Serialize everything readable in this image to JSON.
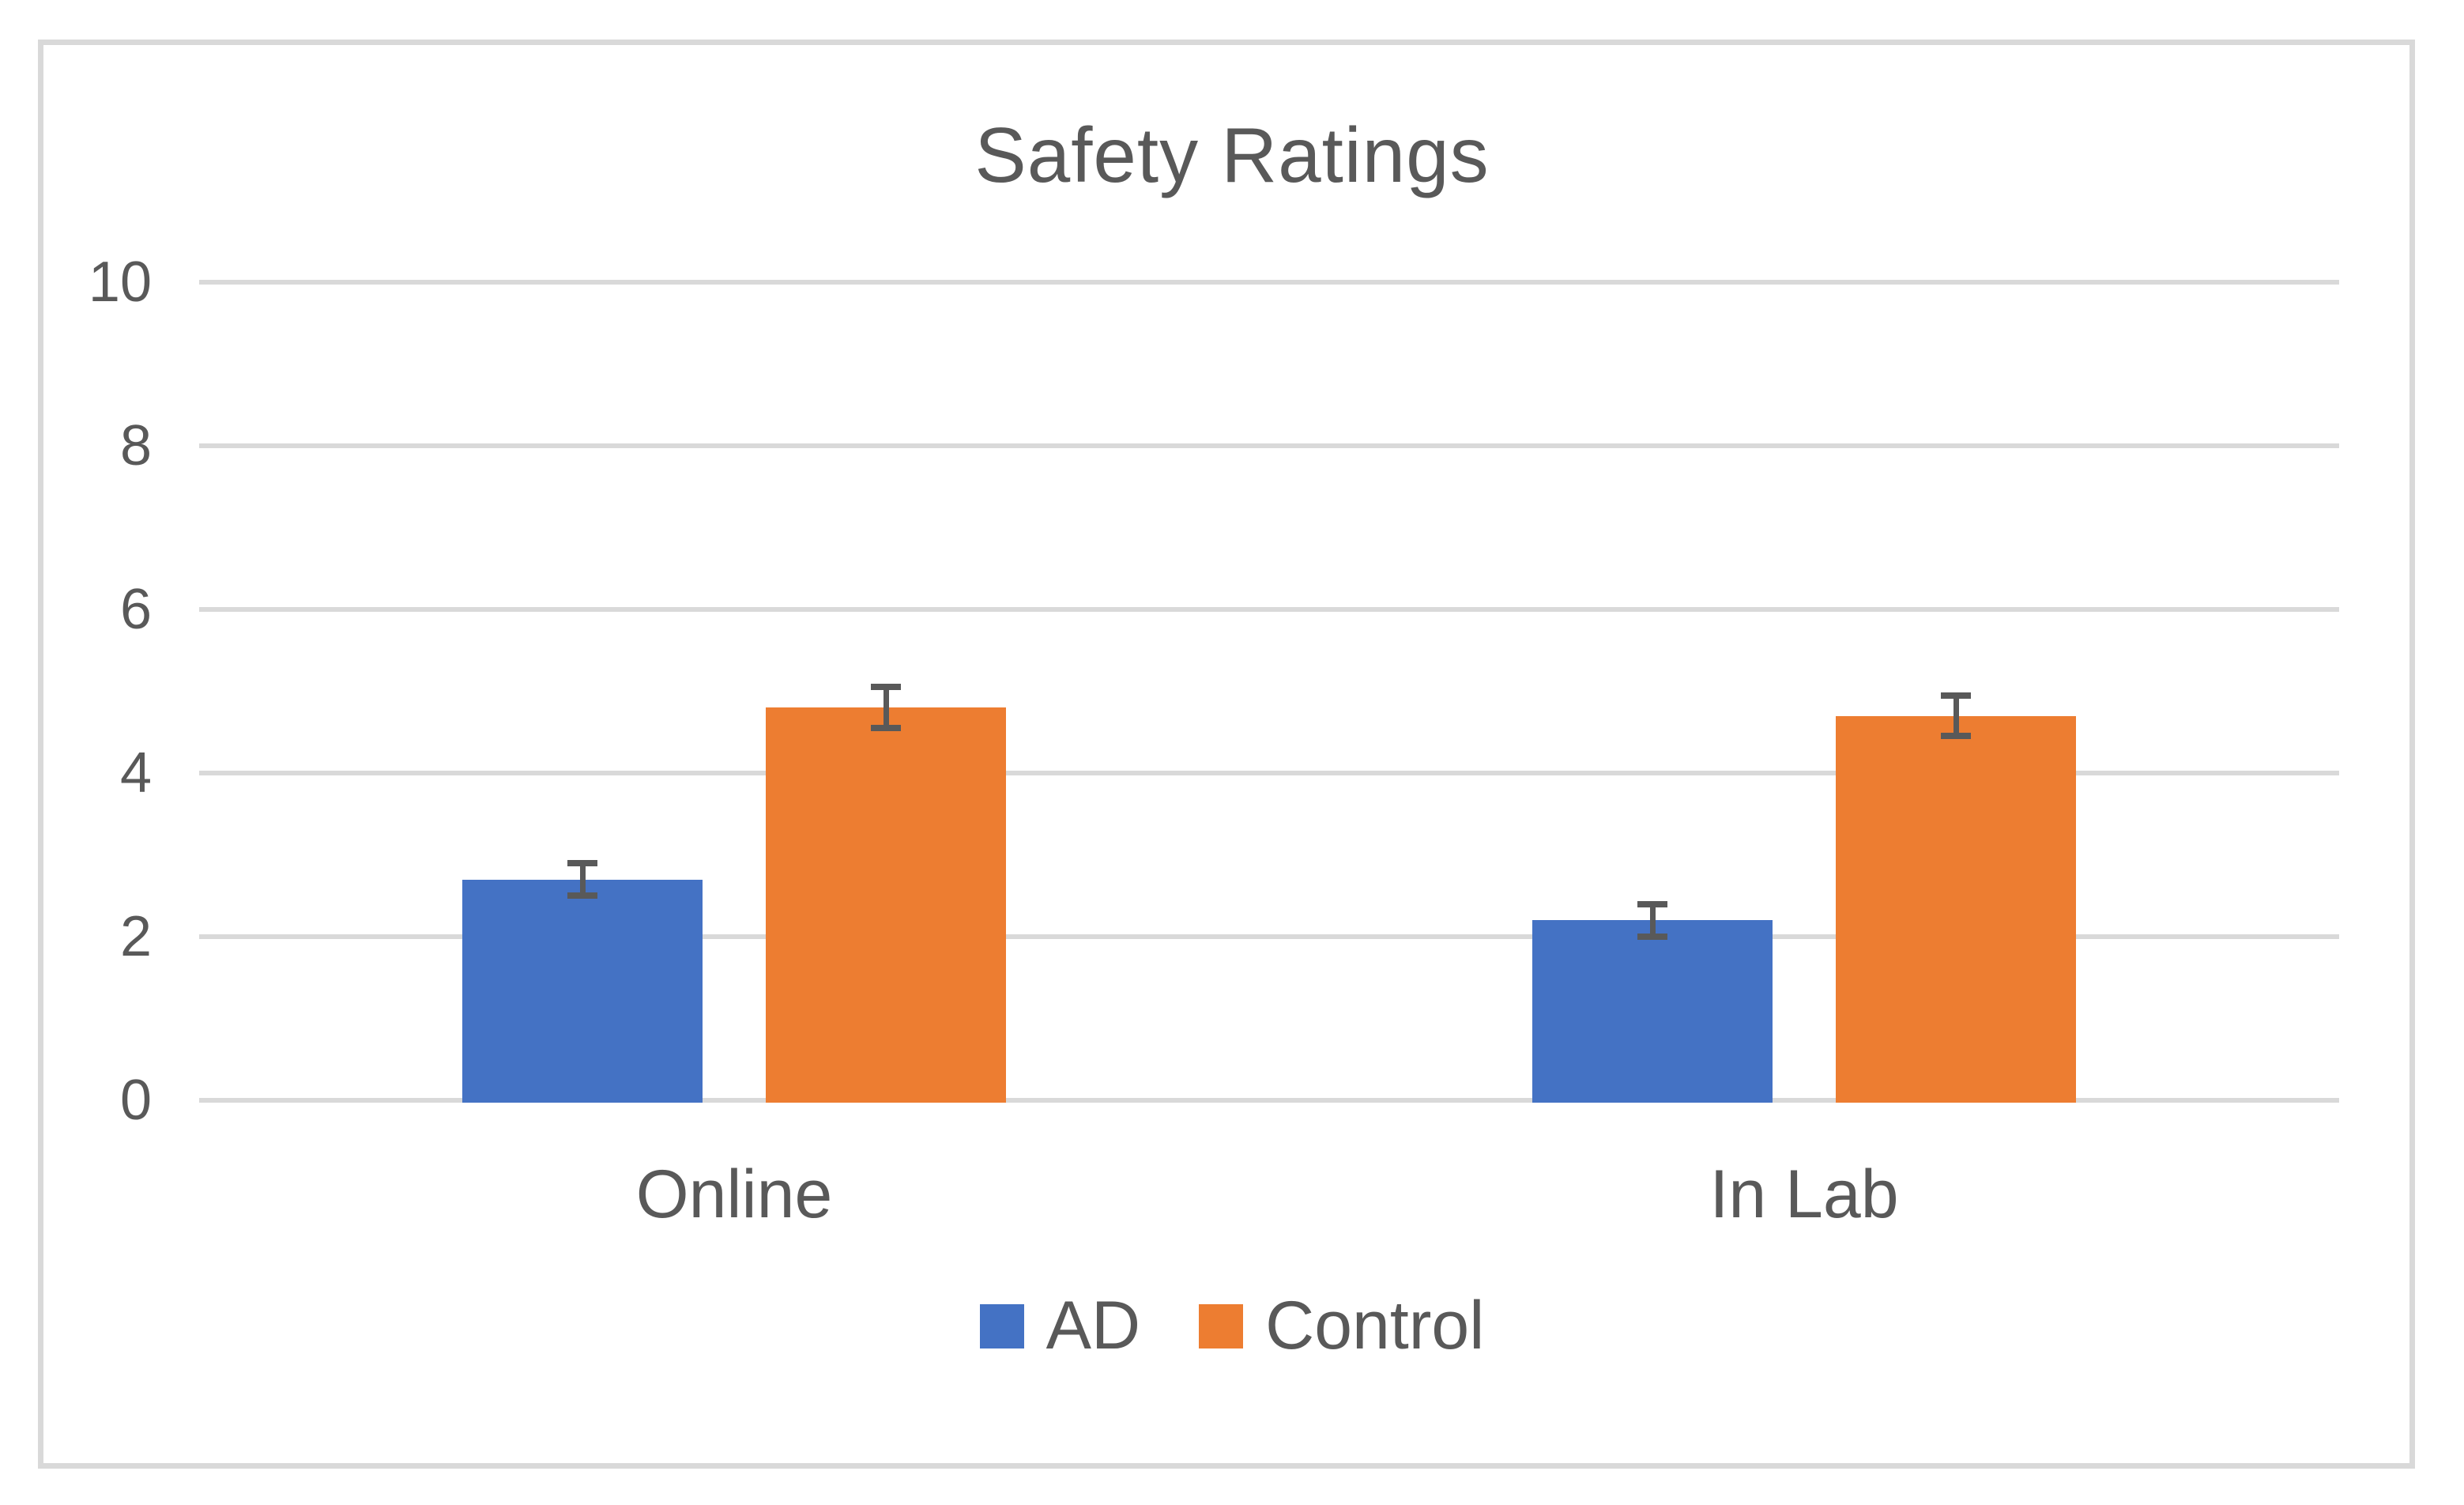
{
  "chart_data": {
    "type": "bar",
    "title": "Safety Ratings",
    "categories": [
      "Online",
      "In Lab"
    ],
    "series": [
      {
        "name": "AD",
        "color": "#4472C4",
        "values": [
          2.7,
          2.2
        ],
        "errors": [
          0.2,
          0.2
        ]
      },
      {
        "name": "Control",
        "color": "#ED7D31",
        "values": [
          4.8,
          4.7
        ],
        "errors": [
          0.25,
          0.25
        ]
      }
    ],
    "ylim": [
      0,
      10
    ],
    "ytick_step": 2,
    "ytick_labels": [
      "0",
      "2",
      "4",
      "6",
      "8",
      "10"
    ],
    "grid": true,
    "legend_position": "bottom",
    "error_bars": true,
    "colors": {
      "text": "#595959",
      "gridline": "#D9D9D9",
      "frame_border": "#D9D9D9",
      "error_bar": "#595959",
      "background": "#FFFFFF"
    }
  }
}
